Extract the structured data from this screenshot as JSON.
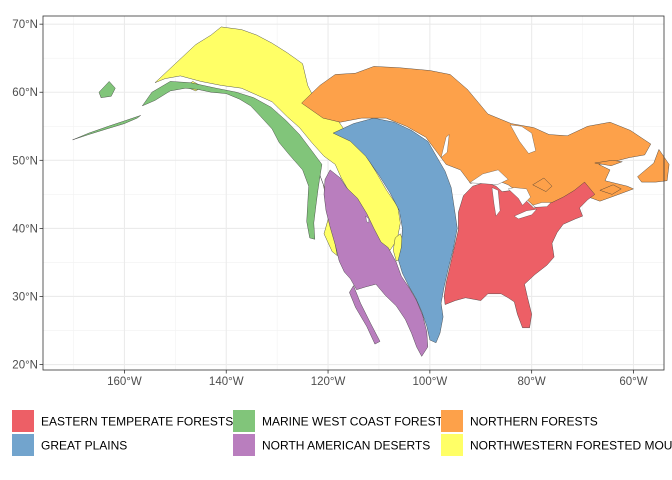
{
  "map": {
    "x_axis": {
      "label": "",
      "range": [
        -176,
        -54
      ],
      "ticks": [
        {
          "value": -160,
          "label": "160°W"
        },
        {
          "value": -140,
          "label": "140°W"
        },
        {
          "value": -120,
          "label": "120°W"
        },
        {
          "value": -100,
          "label": "100°W"
        },
        {
          "value": -80,
          "label": "80°W"
        },
        {
          "value": -60,
          "label": "60°W"
        }
      ]
    },
    "y_axis": {
      "label": "",
      "range": [
        19.2,
        71.2
      ],
      "ticks": [
        {
          "value": 20,
          "label": "20°N"
        },
        {
          "value": 30,
          "label": "30°N"
        },
        {
          "value": 40,
          "label": "40°N"
        },
        {
          "value": 50,
          "label": "50°N"
        },
        {
          "value": 60,
          "label": "60°N"
        },
        {
          "value": 70,
          "label": "70°N"
        }
      ]
    },
    "grid": true,
    "legend": {
      "position": "bottom",
      "items": [
        {
          "key": "eastern",
          "label": "EASTERN TEMPERATE FORESTS",
          "color": "#ED5F66"
        },
        {
          "key": "marine",
          "label": "MARINE WEST COAST FOREST",
          "color": "#81C57A"
        },
        {
          "key": "northern",
          "label": "NORTHERN FORESTS",
          "color": "#FDA14A"
        },
        {
          "key": "plains",
          "label": "GREAT PLAINS",
          "color": "#72A4CD"
        },
        {
          "key": "deserts",
          "label": "NORTH AMERICAN DESERTS",
          "color": "#B97EBE"
        },
        {
          "key": "nwmount",
          "label": "NORTHWESTERN FORESTED MOUNTAINS",
          "color": "#FFFF66"
        }
      ]
    }
  }
}
